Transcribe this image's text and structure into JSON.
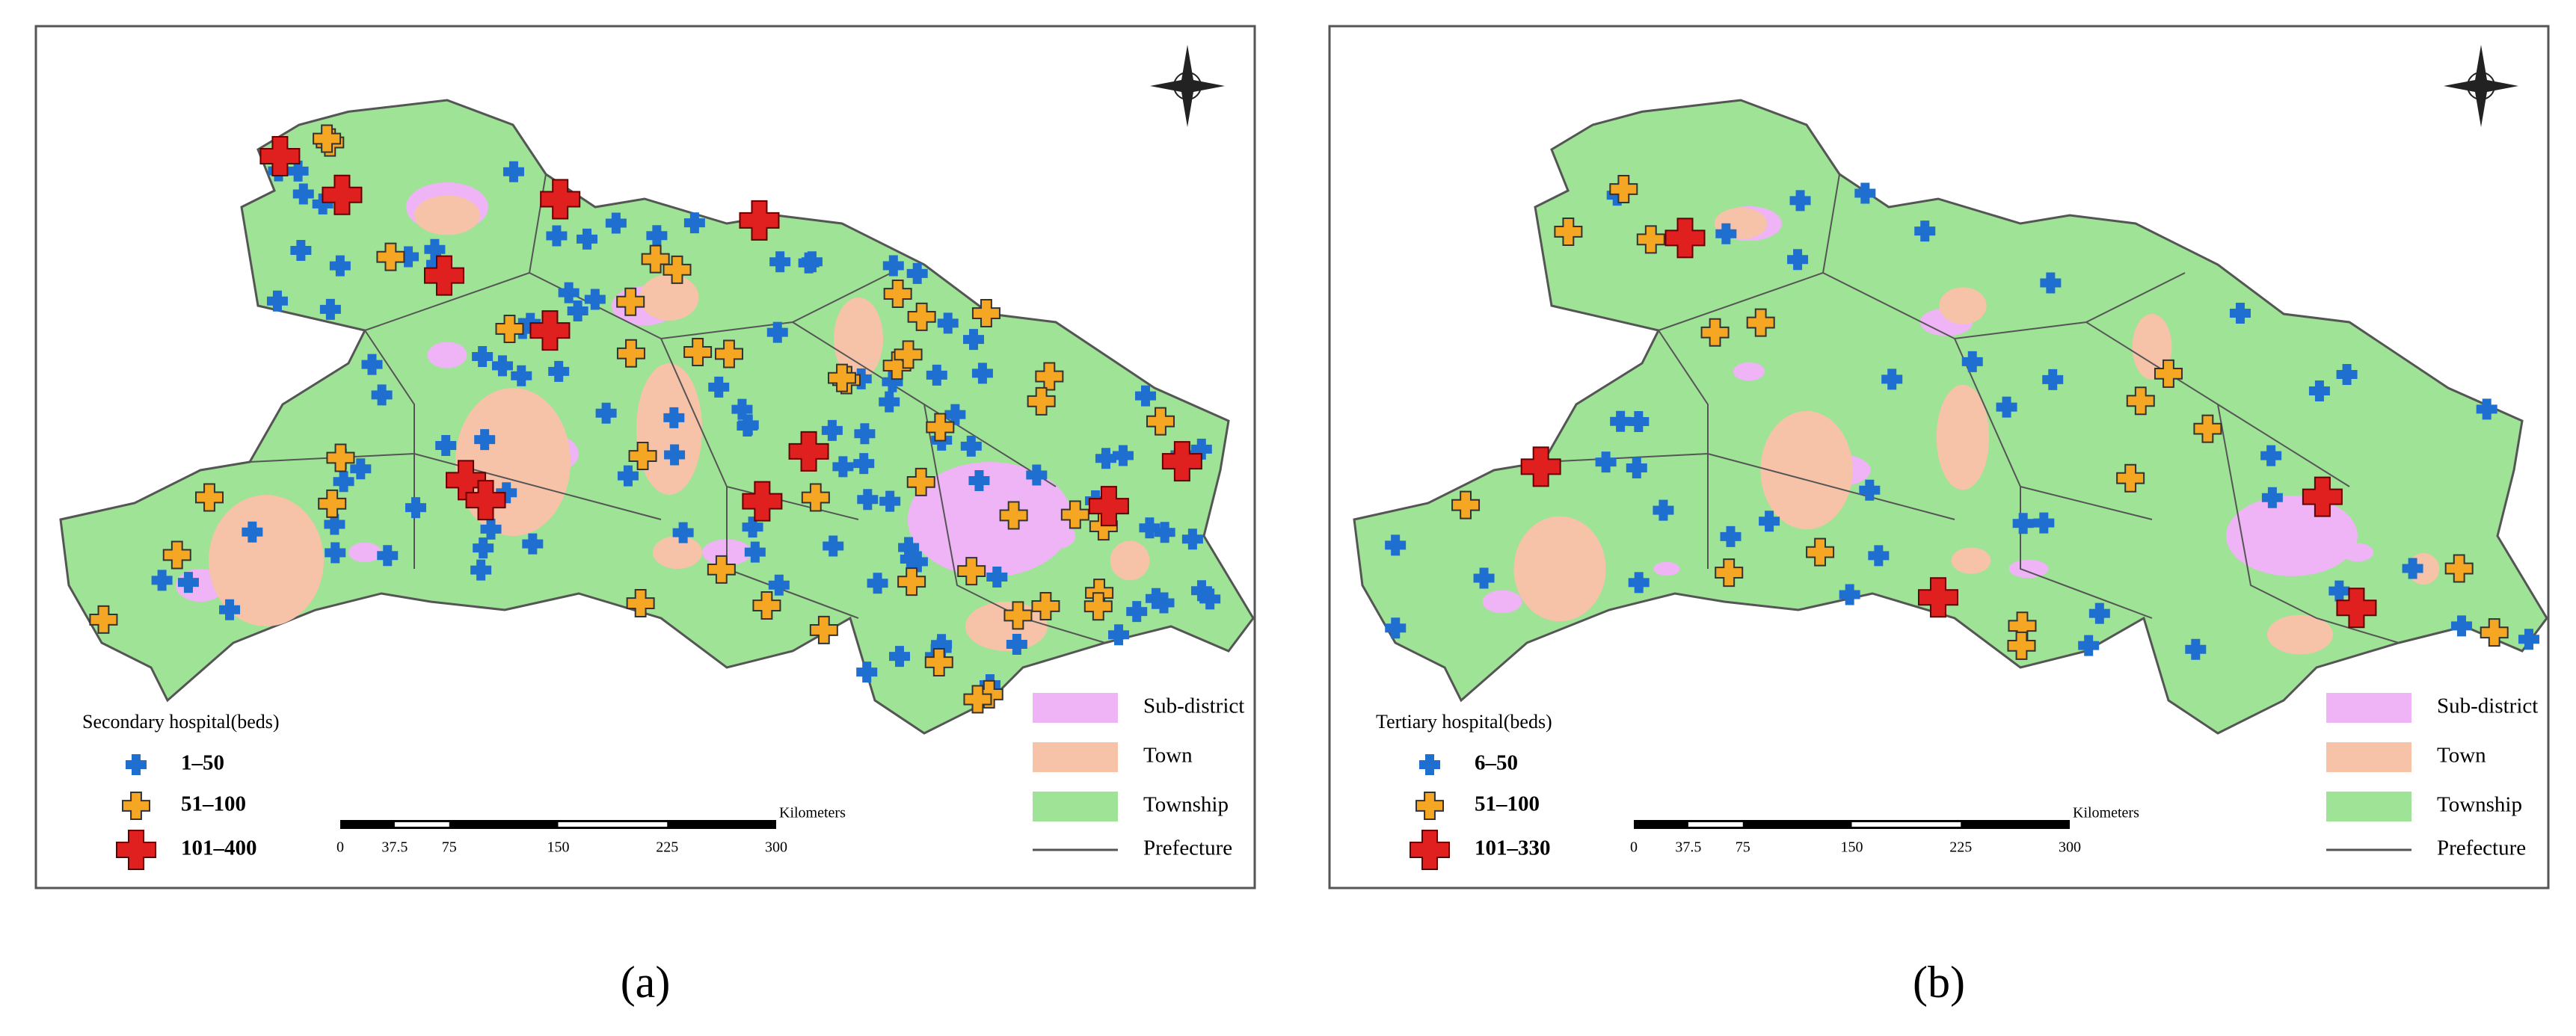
{
  "panels": [
    {
      "caption": "(a)",
      "hospital_legend": {
        "title": "Secondary hospital(beds)",
        "classes": [
          "1–50",
          "51–100",
          "101–400"
        ]
      },
      "land_legend": [
        "Sub-district",
        "Town",
        "Township",
        "Prefecture"
      ],
      "scale": {
        "unit": "Kilometers",
        "ticks": [
          "0",
          "37.5",
          "75",
          "150",
          "225",
          "300"
        ]
      }
    },
    {
      "caption": "(b)",
      "hospital_legend": {
        "title": "Tertiary hospital(beds)",
        "classes": [
          "6–50",
          "51–100",
          "101–330"
        ]
      },
      "land_legend": [
        "Sub-district",
        "Town",
        "Township",
        "Prefecture"
      ],
      "scale": {
        "unit": "Kilometers",
        "ticks": [
          "0",
          "37.5",
          "75",
          "150",
          "225",
          "300"
        ]
      }
    }
  ]
}
